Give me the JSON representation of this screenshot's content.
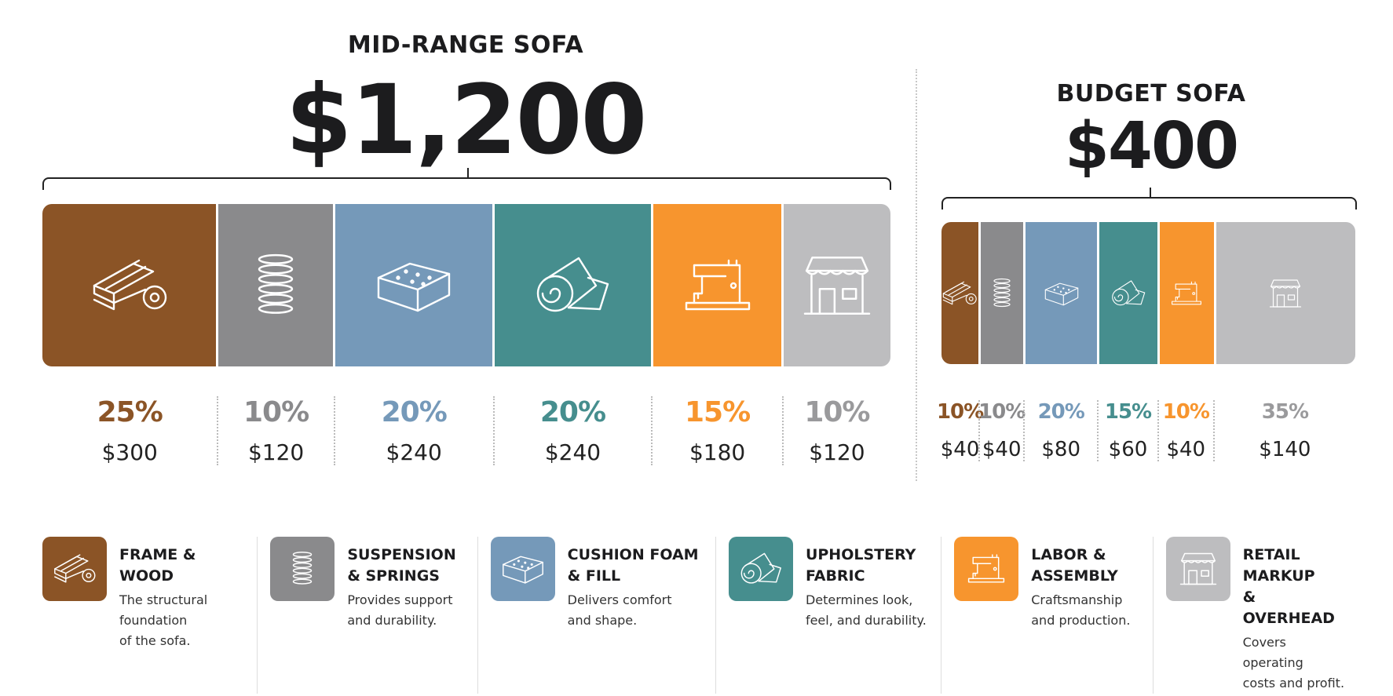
{
  "chart_data": {
    "type": "bar",
    "orientation": "stacked-horizontal",
    "categories": [
      "Frame & Wood",
      "Suspension & Springs",
      "Cushion Foam & Fill",
      "Upholstery Fabric",
      "Labor & Assembly",
      "Retail Markup & Overhead"
    ],
    "colors": [
      "#8B5426",
      "#8A8A8C",
      "#7599B9",
      "#468E8E",
      "#F7952E",
      "#BDBDBF"
    ],
    "icons": [
      "wood-planks-icon",
      "spring-icon",
      "foam-block-icon",
      "fabric-roll-icon",
      "sewing-machine-icon",
      "storefront-icon"
    ],
    "series": [
      {
        "name": "MID-RANGE SOFA",
        "total_label": "$1,200",
        "percent_labels": [
          "25%",
          "10%",
          "20%",
          "20%",
          "15%",
          "10%"
        ],
        "amount_labels": [
          "$300",
          "$120",
          "$240",
          "$240",
          "$180",
          "$120"
        ],
        "values": [
          300,
          120,
          240,
          240,
          180,
          120
        ]
      },
      {
        "name": "BUDGET SOFA",
        "total_label": "$400",
        "percent_labels": [
          "10%",
          "10%",
          "20%",
          "15%",
          "10%",
          "35%"
        ],
        "amount_labels": [
          "$40",
          "$40",
          "$80",
          "$60",
          "$40",
          "$140"
        ],
        "values": [
          40,
          40,
          80,
          60,
          40,
          140
        ]
      }
    ]
  },
  "legend": [
    {
      "name_lines": [
        "FRAME & WOOD"
      ],
      "desc_lines": [
        "The structural",
        "foundation",
        "of the sofa."
      ]
    },
    {
      "name_lines": [
        "SUSPENSION",
        "& SPRINGS"
      ],
      "desc_lines": [
        "Provides support",
        "and durability."
      ]
    },
    {
      "name_lines": [
        "CUSHION FOAM",
        "& FILL"
      ],
      "desc_lines": [
        "Delivers comfort",
        "and shape."
      ]
    },
    {
      "name_lines": [
        "UPHOLSTERY",
        "FABRIC"
      ],
      "desc_lines": [
        "Determines look,",
        "feel, and durability."
      ]
    },
    {
      "name_lines": [
        "LABOR &",
        "ASSEMBLY"
      ],
      "desc_lines": [
        "Craftsmanship",
        "and production."
      ]
    },
    {
      "name_lines": [
        "RETAIL MARKUP",
        "& OVERHEAD"
      ],
      "desc_lines": [
        "Covers operating",
        "costs and profit."
      ]
    }
  ]
}
